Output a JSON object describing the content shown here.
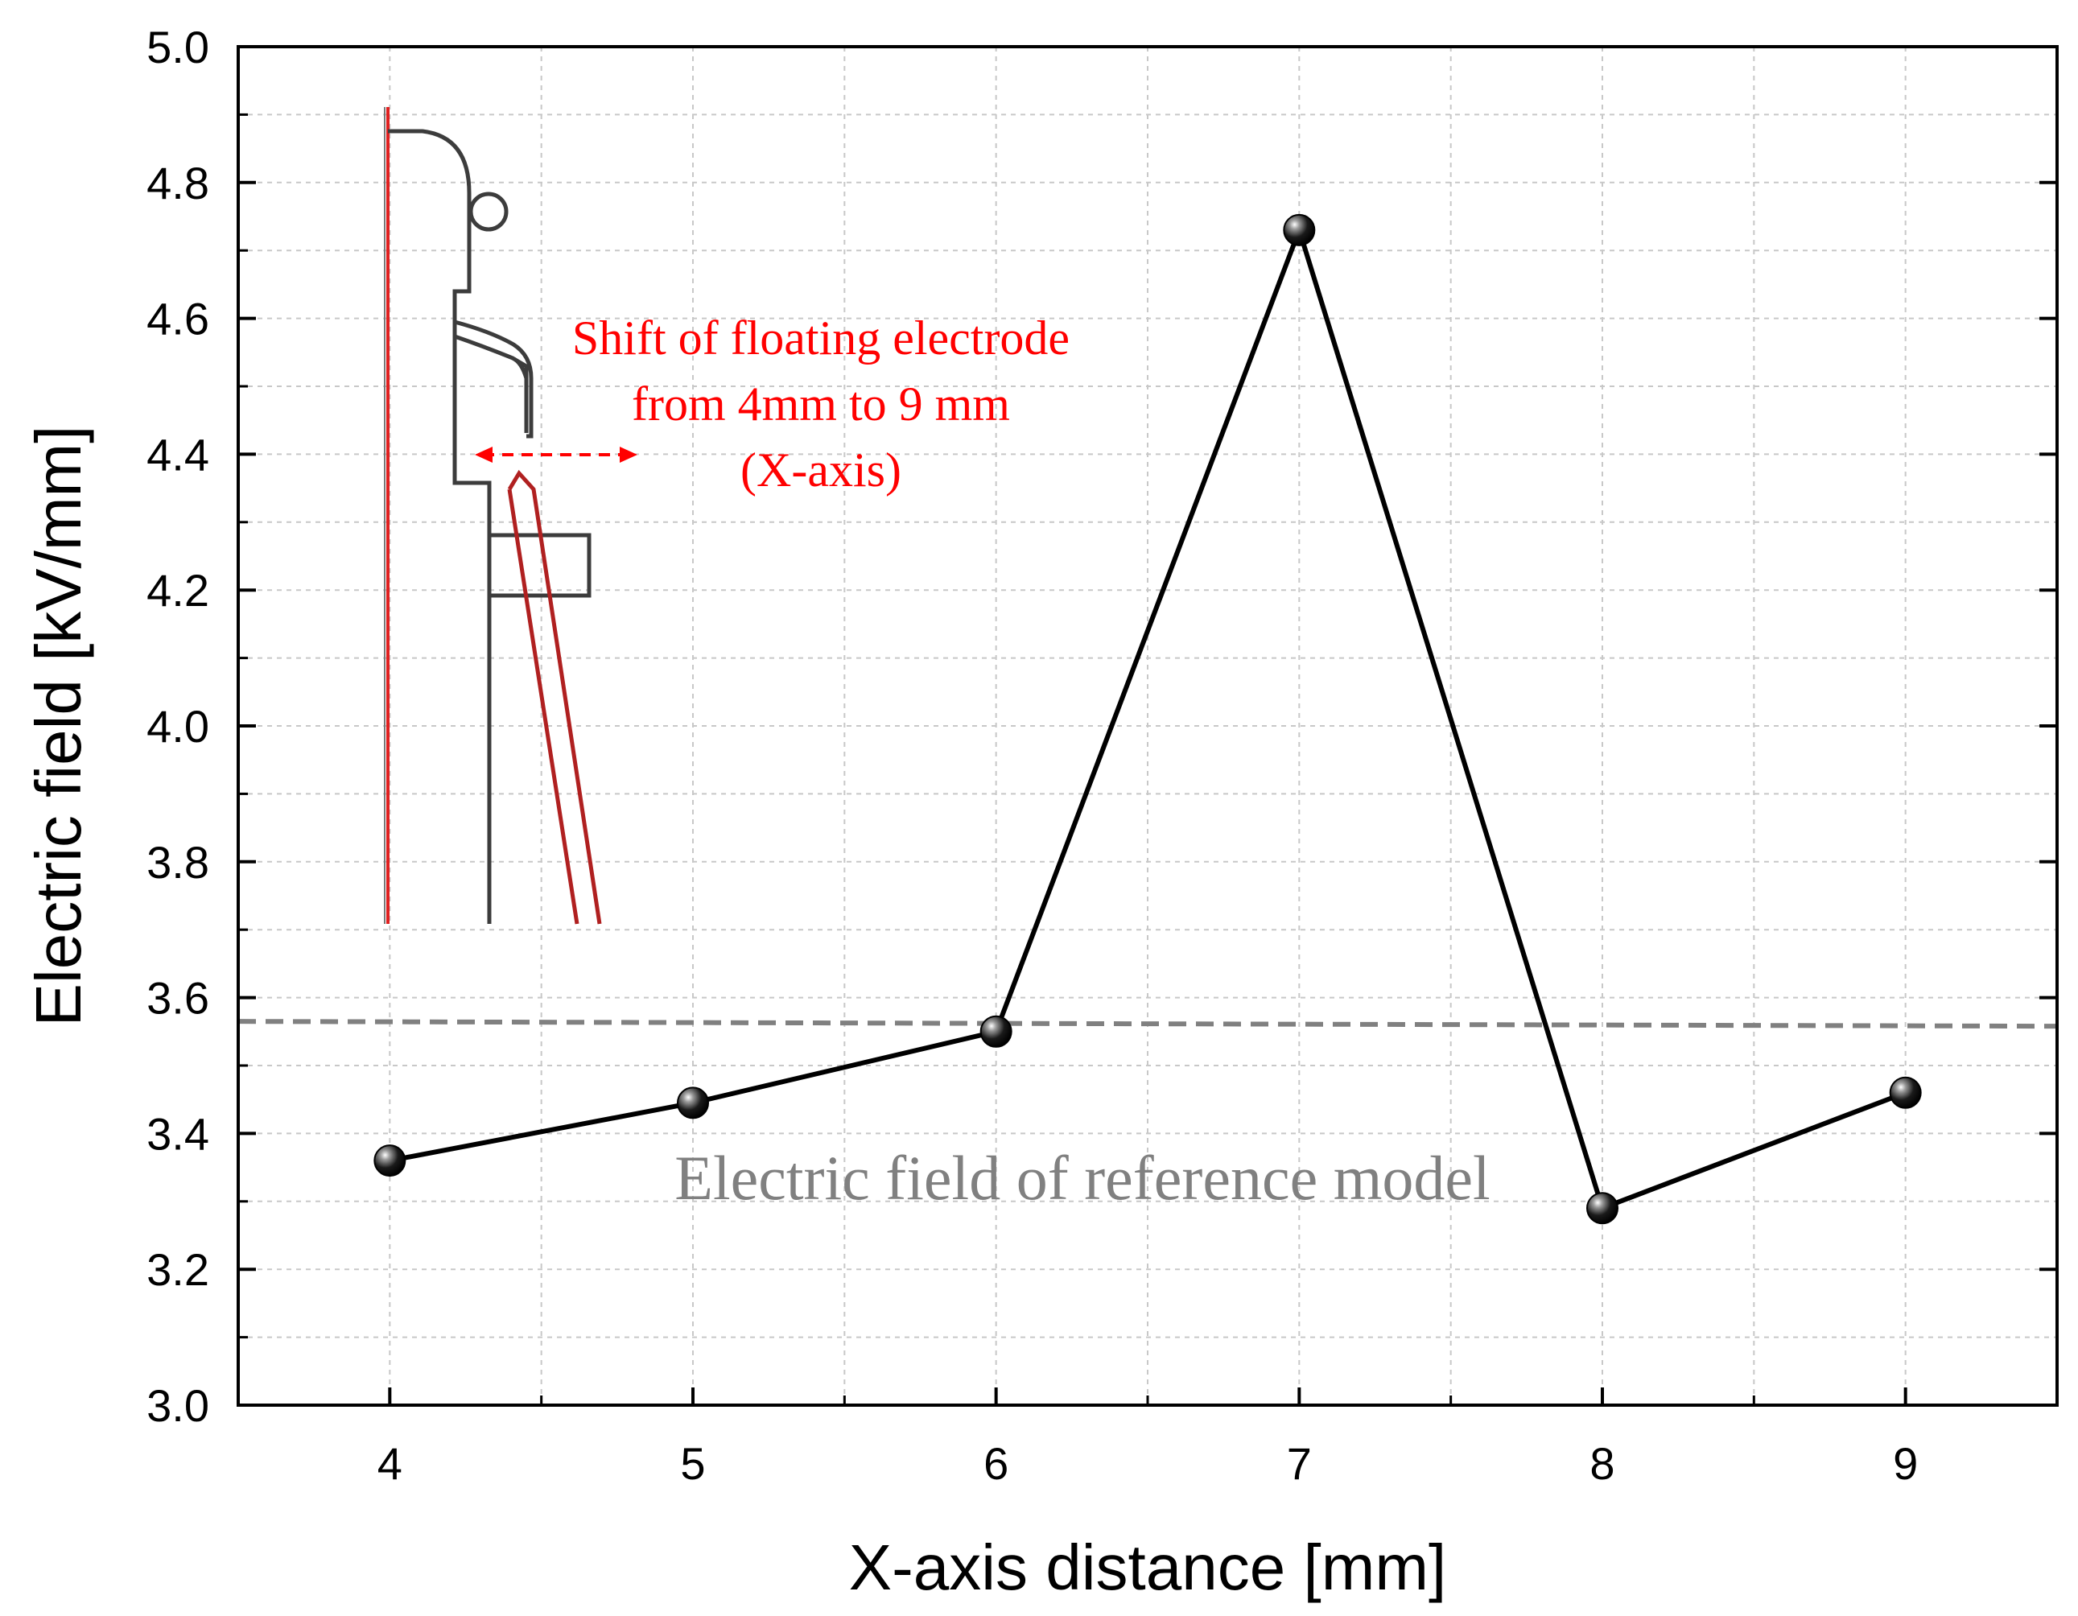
{
  "chart_data": {
    "type": "line",
    "title": "",
    "xlabel": "X-axis distance [mm]",
    "ylabel": "Electric field [kV/mm]",
    "xlim": [
      3.5,
      9.5
    ],
    "ylim": [
      3.0,
      5.0
    ],
    "x_ticks": [
      "4",
      "5",
      "6",
      "7",
      "8",
      "9"
    ],
    "y_ticks": [
      "3.0",
      "3.2",
      "3.4",
      "3.6",
      "3.8",
      "4.0",
      "4.2",
      "4.4",
      "4.6",
      "4.8",
      "5.0"
    ],
    "grid": true,
    "series": [
      {
        "name": "Electric field",
        "x": [
          4,
          5,
          6,
          7,
          8,
          9
        ],
        "values": [
          3.36,
          3.445,
          3.55,
          4.73,
          3.29,
          3.46
        ],
        "color": "#000000"
      }
    ],
    "reference_line": {
      "value": 3.565,
      "label": "Electric field of reference model",
      "color": "#808080"
    },
    "inset_annotation": {
      "lines": [
        "Shift of floating electrode",
        "from 4mm to 9 mm",
        "(X-axis)"
      ],
      "color": "#ff0000"
    }
  }
}
